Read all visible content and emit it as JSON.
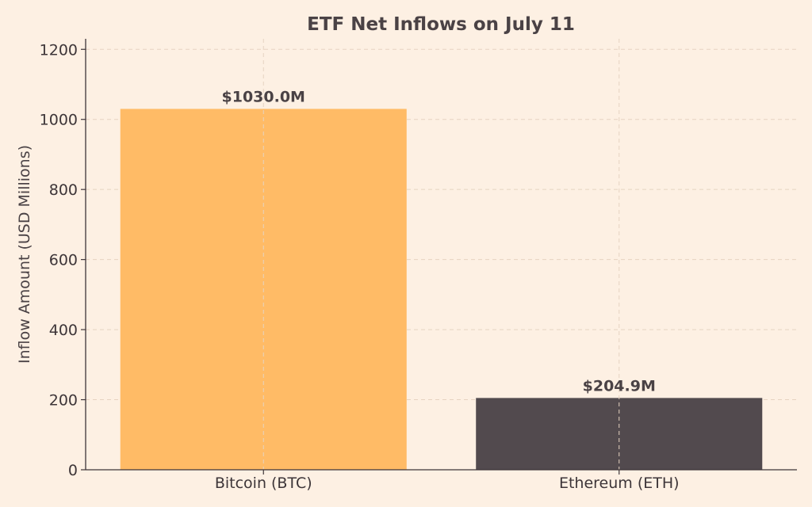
{
  "chart_data": {
    "type": "bar",
    "title": "ETF Net Inflows on July 11",
    "xlabel": "",
    "ylabel": "Inflow Amount (USD Millions)",
    "categories": [
      "Bitcoin (BTC)",
      "Ethereum (ETH)"
    ],
    "values": [
      1030.0,
      204.9
    ],
    "data_labels": [
      "$1030.0M",
      "$204.9M"
    ],
    "ylim": [
      0,
      1230
    ],
    "yticks": [
      0,
      200,
      400,
      600,
      800,
      1000,
      1200
    ],
    "grid": true,
    "colors": [
      "#ffbb66",
      "#524a4e"
    ]
  }
}
